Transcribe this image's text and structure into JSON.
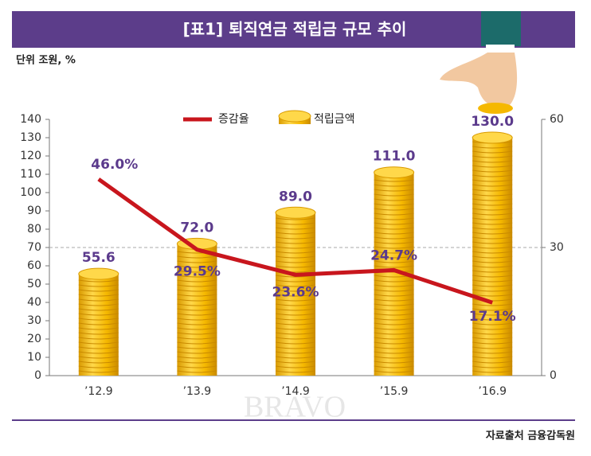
{
  "chart_data": {
    "type": "bar_line",
    "title": "[표1] 퇴직연금 적립금 규모 추이",
    "unit": "단위 조원, %",
    "source": "자료출처 금융감독원",
    "watermark": "BRAVO",
    "categories": [
      "’12.9",
      "’13.9",
      "’14.9",
      "’15.9",
      "’16.9"
    ],
    "series": [
      {
        "name": "증감율",
        "type": "line",
        "color": "#c8161d",
        "axis": "y2",
        "values": [
          46.0,
          29.5,
          23.6,
          24.7,
          17.1
        ],
        "value_labels": [
          "46.0%",
          "29.5%",
          "23.6%",
          "24.7%",
          "17.1%"
        ]
      },
      {
        "name": "적립금액",
        "type": "bar",
        "color": "#f2b705",
        "values": [
          55.6,
          72.0,
          89.0,
          111.0,
          130.0
        ],
        "value_labels": [
          "55.6",
          "72.0",
          "89.0",
          "111.0",
          "130.0"
        ]
      }
    ],
    "ylim": [
      0,
      140
    ],
    "yticks": [
      0,
      10,
      20,
      30,
      40,
      50,
      60,
      70,
      80,
      90,
      100,
      110,
      120,
      130,
      140
    ],
    "y2lim": [
      0,
      60
    ],
    "y2ticks": [
      0,
      30,
      60
    ],
    "y2grid": true
  }
}
